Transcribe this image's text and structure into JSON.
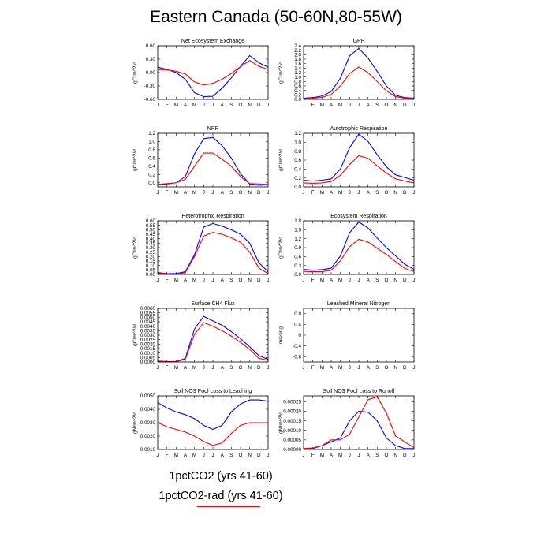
{
  "title": "Eastern Canada (50-60N,80-55W)",
  "colors": {
    "series_1": "#0000ff",
    "series_2": "#ff0000",
    "axis": "#000000"
  },
  "legend": {
    "entries": [
      {
        "label": "1pctCO2 (yrs 41-60)",
        "color": "#0000ff",
        "line_visible": false
      },
      {
        "label": "1pctCO2-rad (yrs 41-60)",
        "color": "#ff0000",
        "line_visible": true
      }
    ],
    "placement": "bottom"
  },
  "chart_data": [
    {
      "type": "line",
      "title": "Net Ecosystem Exchange",
      "ylabel": "gC/m^2/d",
      "categories": [
        "J",
        "F",
        "M",
        "A",
        "M",
        "J",
        "J",
        "A",
        "S",
        "O",
        "N",
        "D",
        "J"
      ],
      "ylim": [
        -0.6,
        0.6
      ],
      "yticks": [
        -0.6,
        -0.3,
        0.0,
        0.3,
        0.6
      ],
      "ytick_labels": [
        "-0.60",
        "-0.30",
        "0.00",
        "0.30",
        "0.60"
      ],
      "series": [
        {
          "color": "#0000ff",
          "values": [
            0.12,
            0.07,
            0.0,
            -0.15,
            -0.45,
            -0.54,
            -0.53,
            -0.35,
            -0.12,
            0.14,
            0.38,
            0.22,
            0.12
          ]
        },
        {
          "color": "#ff0000",
          "values": [
            0.07,
            0.06,
            0.03,
            -0.03,
            -0.21,
            -0.28,
            -0.24,
            -0.15,
            -0.02,
            0.13,
            0.27,
            0.14,
            0.07
          ]
        }
      ]
    },
    {
      "type": "line",
      "title": "GPP",
      "ylabel": "gC/m^2/d",
      "categories": [
        "J",
        "F",
        "M",
        "A",
        "M",
        "J",
        "J",
        "A",
        "S",
        "O",
        "N",
        "D",
        "J"
      ],
      "ylim": [
        0,
        2.4
      ],
      "yticks": [
        0,
        0.2,
        0.4,
        0.6,
        0.8,
        1.0,
        1.2,
        1.4,
        1.6,
        1.8,
        2.0,
        2.2,
        2.4
      ],
      "ytick_labels": [
        "0.0",
        "0.2",
        "0.4",
        "0.6",
        "0.8",
        "1.0",
        "1.2",
        "1.4",
        "1.6",
        "1.8",
        "2.0",
        "2.2",
        "2.4"
      ],
      "series": [
        {
          "color": "#0000ff",
          "values": [
            0.05,
            0.08,
            0.15,
            0.35,
            0.95,
            1.95,
            2.28,
            1.85,
            1.25,
            0.6,
            0.18,
            0.08,
            0.05
          ]
        },
        {
          "color": "#ff0000",
          "values": [
            0.02,
            0.05,
            0.09,
            0.22,
            0.6,
            1.15,
            1.45,
            1.2,
            0.8,
            0.38,
            0.12,
            0.05,
            0.02
          ]
        }
      ]
    },
    {
      "type": "line",
      "title": "NPP",
      "ylabel": "gC/m^2/d",
      "categories": [
        "J",
        "F",
        "M",
        "A",
        "M",
        "J",
        "J",
        "A",
        "S",
        "O",
        "N",
        "D",
        "J"
      ],
      "ylim": [
        -0.1,
        1.2
      ],
      "yticks": [
        0.0,
        0.2,
        0.4,
        0.6,
        0.8,
        1.0,
        1.2
      ],
      "ytick_labels": [
        "0.0",
        "0.2",
        "0.4",
        "0.6",
        "0.8",
        "1.0",
        "1.2"
      ],
      "series": [
        {
          "color": "#0000ff",
          "values": [
            -0.05,
            -0.03,
            0.0,
            0.15,
            0.7,
            1.07,
            1.1,
            0.9,
            0.6,
            0.22,
            -0.03,
            -0.06,
            -0.05
          ]
        },
        {
          "color": "#ff0000",
          "values": [
            -0.04,
            -0.02,
            0.0,
            0.08,
            0.4,
            0.72,
            0.72,
            0.57,
            0.4,
            0.15,
            -0.02,
            -0.03,
            -0.04
          ]
        }
      ]
    },
    {
      "type": "line",
      "title": "Autotrophic Respiration",
      "ylabel": "gC/m^2/d",
      "categories": [
        "J",
        "F",
        "M",
        "A",
        "M",
        "J",
        "J",
        "A",
        "S",
        "O",
        "N",
        "D",
        "J"
      ],
      "ylim": [
        0,
        1.2
      ],
      "yticks": [
        0.0,
        0.2,
        0.4,
        0.6,
        0.8,
        1.0,
        1.2
      ],
      "ytick_labels": [
        "0.0",
        "0.2",
        "0.4",
        "0.6",
        "0.8",
        "1.0",
        "1.2"
      ],
      "series": [
        {
          "color": "#0000ff",
          "values": [
            0.15,
            0.13,
            0.15,
            0.18,
            0.4,
            0.88,
            1.18,
            1.02,
            0.72,
            0.45,
            0.27,
            0.21,
            0.15
          ]
        },
        {
          "color": "#ff0000",
          "values": [
            0.09,
            0.08,
            0.09,
            0.12,
            0.26,
            0.5,
            0.7,
            0.64,
            0.47,
            0.31,
            0.18,
            0.13,
            0.09
          ]
        }
      ]
    },
    {
      "type": "line",
      "title": "Heterotrophic Respiration",
      "ylabel": "gC/m^2/d",
      "categories": [
        "J",
        "F",
        "M",
        "A",
        "M",
        "J",
        "J",
        "A",
        "S",
        "O",
        "N",
        "D",
        "J"
      ],
      "ylim": [
        0,
        0.6
      ],
      "yticks": [
        0,
        0.05,
        0.1,
        0.15,
        0.2,
        0.25,
        0.3,
        0.35,
        0.4,
        0.45,
        0.5,
        0.55,
        0.6
      ],
      "ytick_labels": [
        "0.00",
        "0.05",
        "0.10",
        "0.15",
        "0.20",
        "0.25",
        "0.30",
        "0.35",
        "0.40",
        "0.45",
        "0.50",
        "0.55",
        "0.60"
      ],
      "series": [
        {
          "color": "#0000ff",
          "values": [
            0.02,
            0.01,
            0.01,
            0.03,
            0.22,
            0.53,
            0.57,
            0.54,
            0.5,
            0.45,
            0.35,
            0.13,
            0.03
          ]
        },
        {
          "color": "#ff0000",
          "values": [
            0.01,
            0.01,
            0.0,
            0.02,
            0.2,
            0.43,
            0.47,
            0.45,
            0.41,
            0.36,
            0.25,
            0.07,
            0.01
          ]
        }
      ]
    },
    {
      "type": "line",
      "title": "Ecosystem Respiration",
      "ylabel": "gC/m^2/d",
      "categories": [
        "J",
        "F",
        "M",
        "A",
        "M",
        "J",
        "J",
        "A",
        "S",
        "O",
        "N",
        "D",
        "J"
      ],
      "ylim": [
        0,
        1.8
      ],
      "yticks": [
        0.0,
        0.3,
        0.6,
        0.9,
        1.2,
        1.5,
        1.8
      ],
      "ytick_labels": [
        "0.0",
        "0.3",
        "0.6",
        "0.9",
        "1.2",
        "1.5",
        "1.8"
      ],
      "series": [
        {
          "color": "#0000ff",
          "values": [
            0.17,
            0.14,
            0.16,
            0.21,
            0.62,
            1.4,
            1.76,
            1.56,
            1.22,
            0.9,
            0.62,
            0.34,
            0.17
          ]
        },
        {
          "color": "#ff0000",
          "values": [
            0.1,
            0.09,
            0.09,
            0.14,
            0.46,
            0.93,
            1.18,
            1.09,
            0.88,
            0.67,
            0.43,
            0.2,
            0.1
          ]
        }
      ]
    },
    {
      "type": "line",
      "title": "Surface CH4 Flux",
      "ylabel": "gC/m^2/d",
      "categories": [
        "J",
        "F",
        "M",
        "A",
        "M",
        "J",
        "J",
        "A",
        "S",
        "O",
        "N",
        "D",
        "J"
      ],
      "ylim": [
        0,
        0.006
      ],
      "yticks": [
        0,
        0.0005,
        0.001,
        0.0015,
        0.002,
        0.0025,
        0.003,
        0.0035,
        0.004,
        0.0045,
        0.005,
        0.0055,
        0.006
      ],
      "ytick_labels": [
        "0.0000",
        "0.0005",
        "0.0010",
        "0.0015",
        "0.0020",
        "0.0025",
        "0.0030",
        "0.0035",
        "0.0040",
        "0.0045",
        "0.0050",
        "0.0055",
        "0.0060"
      ],
      "series": [
        {
          "color": "#0000ff",
          "values": [
            0.0001,
            5e-05,
            5e-05,
            0.0004,
            0.0037,
            0.0051,
            0.0046,
            0.0041,
            0.0034,
            0.0026,
            0.0017,
            0.0007,
            0.0003
          ]
        },
        {
          "color": "#ff0000",
          "values": [
            5e-05,
            3e-05,
            3e-05,
            0.0003,
            0.0031,
            0.0044,
            0.004,
            0.0035,
            0.0029,
            0.0022,
            0.0014,
            0.0004,
            0.0002
          ]
        }
      ]
    },
    {
      "type": "line",
      "title": "Leached Mineral Nitrogen",
      "ylabel": "missing",
      "categories": [
        "J",
        "F",
        "M",
        "A",
        "M",
        "J",
        "J",
        "A",
        "S",
        "O",
        "N",
        "D",
        "J"
      ],
      "ylim": [
        -1.0,
        1.0
      ],
      "yticks": [
        -0.8,
        -0.4,
        0.0,
        0.4,
        0.8
      ],
      "ytick_labels": [
        "-0.8",
        "-0.4",
        "0",
        "0.4",
        "0.8"
      ],
      "series": []
    },
    {
      "type": "line",
      "title": "Soil NO3 Pool Loss to Leaching",
      "ylabel": "gN/m^2/d",
      "categories": [
        "J",
        "F",
        "M",
        "A",
        "M",
        "J",
        "J",
        "A",
        "S",
        "O",
        "N",
        "D",
        "J"
      ],
      "ylim": [
        0.001,
        0.005
      ],
      "yticks": [
        0.001,
        0.002,
        0.003,
        0.004,
        0.005
      ],
      "ytick_labels": [
        "0.0010",
        "0.0020",
        "0.0030",
        "0.0040",
        "0.0050"
      ],
      "series": [
        {
          "color": "#0000ff",
          "values": [
            0.0045,
            0.0041,
            0.0038,
            0.0036,
            0.0033,
            0.0028,
            0.0025,
            0.0028,
            0.0038,
            0.0044,
            0.0047,
            0.0047,
            0.0046
          ]
        },
        {
          "color": "#ff0000",
          "values": [
            0.003,
            0.0027,
            0.0025,
            0.0023,
            0.002,
            0.0016,
            0.0013,
            0.0015,
            0.0022,
            0.0028,
            0.003,
            0.003,
            0.003
          ]
        }
      ]
    },
    {
      "type": "line",
      "title": "Soil NO3 Pool Loss to Runoff",
      "ylabel": "gN/m^2/d",
      "categories": [
        "J",
        "F",
        "M",
        "A",
        "M",
        "J",
        "J",
        "A",
        "S",
        "O",
        "N",
        "D",
        "J"
      ],
      "ylim": [
        0,
        0.00028
      ],
      "yticks": [
        0,
        5e-05,
        0.0001,
        0.00015,
        0.0002,
        0.00025
      ],
      "ytick_labels": [
        "0.00000",
        "0.00005",
        "0.00010",
        "0.00015",
        "0.00020",
        "0.00025"
      ],
      "series": [
        {
          "color": "#0000ff",
          "values": [
            5e-06,
            5e-06,
            2e-05,
            4e-05,
            6e-05,
            0.00015,
            0.0002,
            0.000195,
            0.00015,
            6e-05,
            2e-05,
            5e-06,
            5e-06
          ]
        },
        {
          "color": "#ff0000",
          "values": [
            5e-06,
            8e-06,
            2e-05,
            5e-05,
            5e-05,
            8e-05,
            0.00017,
            0.00026,
            0.000275,
            0.00019,
            7e-05,
            4e-05,
            1e-05
          ]
        }
      ]
    }
  ]
}
